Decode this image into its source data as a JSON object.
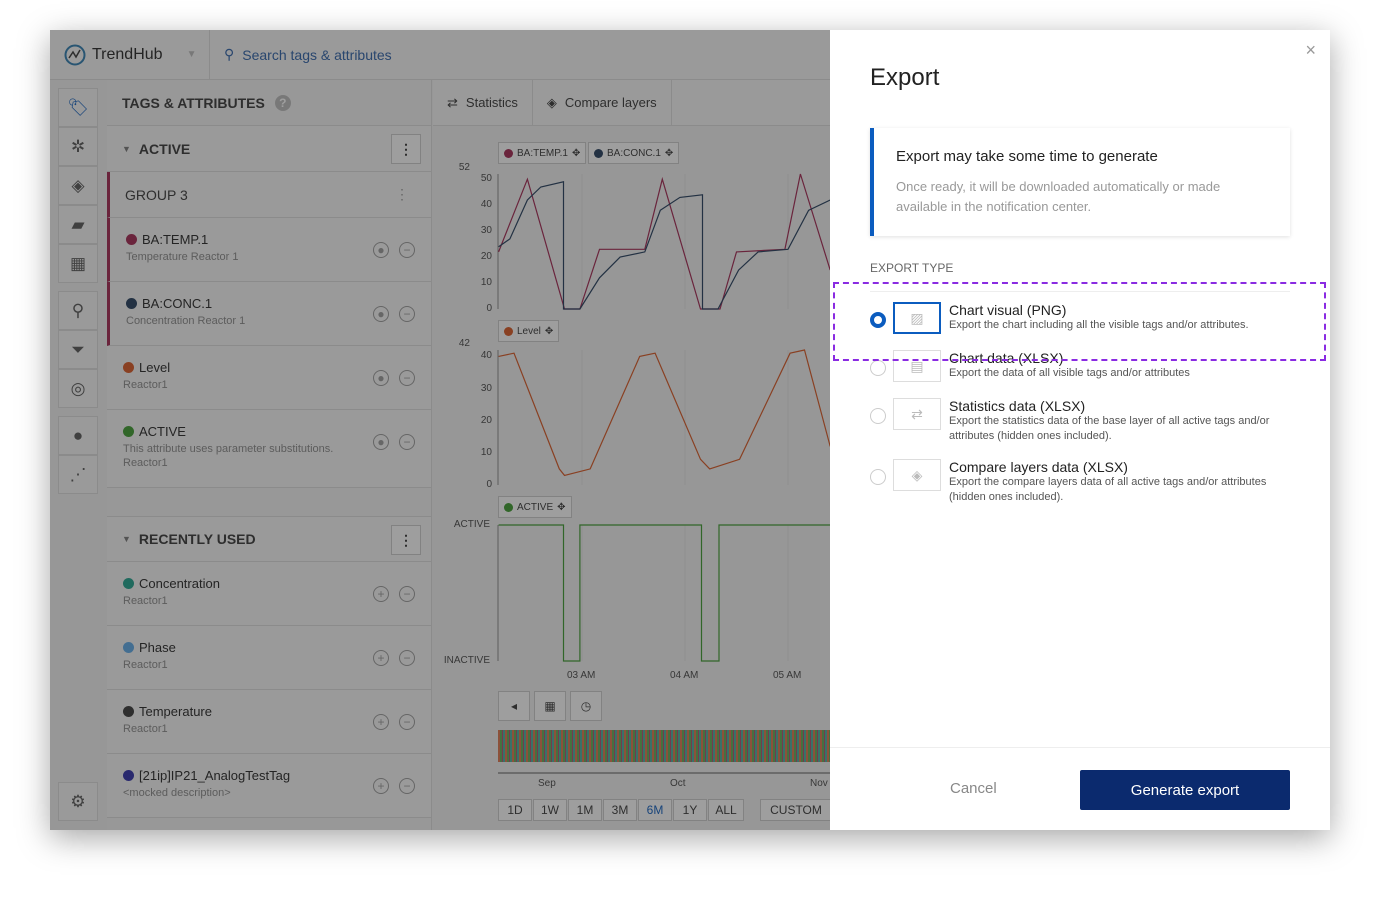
{
  "app": {
    "brand": "TrendHub",
    "search_placeholder": "Search tags & attributes"
  },
  "rail": [
    "tag-icon",
    "snowflake-icon",
    "layers-icon",
    "comment-icon",
    "dashboard-icon",
    "search-icon",
    "filter-icon",
    "fingerprint-icon",
    "bulb-icon",
    "graph-icon",
    "gear-icon"
  ],
  "panel": {
    "title": "TAGS & ATTRIBUTES",
    "active_label": "ACTIVE",
    "group_label": "GROUP 3",
    "recent_label": "RECENTLY USED",
    "active_items": [
      {
        "name": "BA:TEMP.1",
        "desc": "Temperature Reactor 1",
        "color": "#a0224e"
      },
      {
        "name": "BA:CONC.1",
        "desc": "Concentration Reactor 1",
        "color": "#1f3a5a"
      },
      {
        "name": "Level",
        "desc": "Reactor1",
        "color": "#d9541e"
      },
      {
        "name": "ACTIVE",
        "desc": "This attribute uses parameter substitutions.",
        "desc2": "Reactor1",
        "color": "#3a9a2a"
      }
    ],
    "recent_items": [
      {
        "name": "Concentration",
        "desc": "Reactor1",
        "color": "#1aa08a"
      },
      {
        "name": "Phase",
        "desc": "Reactor1",
        "color": "#5aa8e8"
      },
      {
        "name": "Temperature",
        "desc": "Reactor1",
        "color": "#333333"
      },
      {
        "name": "[21ip]IP21_AnalogTestTag",
        "desc": "<mocked description>",
        "color": "#2a2aa8"
      }
    ]
  },
  "tabs": {
    "statistics": "Statistics",
    "compare": "Compare layers"
  },
  "chart_data": [
    {
      "type": "line",
      "legend": [
        "BA:TEMP.1",
        "BA:CONC.1"
      ],
      "yticks": [
        "52",
        "50",
        "40",
        "30",
        "20",
        "10",
        "0"
      ],
      "ylim": [
        0,
        52
      ],
      "series": [
        {
          "name": "BA:TEMP.1",
          "color": "#a0224e",
          "points": [
            [
              2.19,
              22
            ],
            [
              2.47,
              50
            ],
            [
              2.83,
              0
            ],
            [
              2.98,
              0
            ],
            [
              3.17,
              23
            ],
            [
              3.61,
              23
            ],
            [
              3.78,
              50
            ],
            [
              4.15,
              0
            ],
            [
              4.34,
              0
            ],
            [
              4.5,
              22
            ],
            [
              4.97,
              23
            ],
            [
              5.12,
              52
            ],
            [
              5.41,
              15
            ]
          ]
        },
        {
          "name": "BA:CONC.1",
          "color": "#1f3a5a",
          "points": [
            [
              2.19,
              24
            ],
            [
              2.3,
              27
            ],
            [
              2.47,
              42
            ],
            [
              2.6,
              47
            ],
            [
              2.82,
              49
            ],
            [
              2.82,
              0
            ],
            [
              2.98,
              0
            ],
            [
              3.17,
              12
            ],
            [
              3.37,
              20
            ],
            [
              3.61,
              22
            ],
            [
              3.76,
              38
            ],
            [
              3.95,
              43
            ],
            [
              4.17,
              44
            ],
            [
              4.17,
              0
            ],
            [
              4.32,
              0
            ],
            [
              4.52,
              15
            ],
            [
              4.71,
              22
            ],
            [
              5.0,
              23
            ],
            [
              5.2,
              38
            ],
            [
              5.41,
              42
            ]
          ]
        }
      ]
    },
    {
      "type": "line",
      "legend": [
        "Level"
      ],
      "yticks": [
        "42",
        "40",
        "30",
        "20",
        "10",
        "0"
      ],
      "ylim": [
        0,
        42
      ],
      "series": [
        {
          "name": "Level",
          "color": "#d9541e",
          "points": [
            [
              2.19,
              40
            ],
            [
              2.34,
              41
            ],
            [
              2.78,
              5
            ],
            [
              2.83,
              3
            ],
            [
              3.08,
              5
            ],
            [
              3.56,
              40
            ],
            [
              3.71,
              41
            ],
            [
              4.15,
              8
            ],
            [
              4.24,
              5
            ],
            [
              4.53,
              8
            ],
            [
              5.02,
              41
            ],
            [
              5.16,
              42
            ],
            [
              5.41,
              12
            ]
          ]
        }
      ]
    },
    {
      "type": "line",
      "legend": [
        "ACTIVE"
      ],
      "yticks": [
        "ACTIVE",
        "INACTIVE"
      ],
      "series": [
        {
          "name": "ACTIVE",
          "color": "#3a9a2a",
          "points": [
            [
              2.19,
              1
            ],
            [
              2.82,
              1
            ],
            [
              2.82,
              0
            ],
            [
              2.98,
              0
            ],
            [
              2.98,
              1
            ],
            [
              4.16,
              1
            ],
            [
              4.16,
              0
            ],
            [
              4.33,
              0
            ],
            [
              4.33,
              1
            ],
            [
              5.41,
              1
            ]
          ]
        }
      ]
    }
  ],
  "xaxis": [
    "03 AM",
    "04 AM",
    "05 AM"
  ],
  "navigator": {
    "months": [
      "Sep",
      "Oct",
      "Nov"
    ]
  },
  "ranges": [
    "1D",
    "1W",
    "1M",
    "3M",
    "6M",
    "1Y",
    "ALL"
  ],
  "selected_range": "6M",
  "custom": "CUSTOM",
  "modal": {
    "title": "Export",
    "note_title": "Export may take some time to generate",
    "note_text": "Once ready, it will be downloaded automatically or made available in the notification center.",
    "type_label": "EXPORT TYPE",
    "options": [
      {
        "title": "Chart visual (PNG)",
        "desc": "Export the chart including all the visible tags and/or attributes.",
        "icon": "image-icon",
        "selected": true
      },
      {
        "title": "Chart data (XLSX)",
        "desc": "Export the data of all visible tags and/or attributes",
        "icon": "table-icon",
        "selected": false
      },
      {
        "title": "Statistics data (XLSX)",
        "desc": "Export the statistics data of the base layer of all active tags and/or attributes (hidden ones included).",
        "icon": "swap-icon",
        "selected": false
      },
      {
        "title": "Compare layers data (XLSX)",
        "desc": "Export the compare layers data of all active tags and/or attributes (hidden ones included).",
        "icon": "layers-icon",
        "selected": false
      }
    ],
    "cancel": "Cancel",
    "generate": "Generate export",
    "accent": "#0b5cbf"
  }
}
